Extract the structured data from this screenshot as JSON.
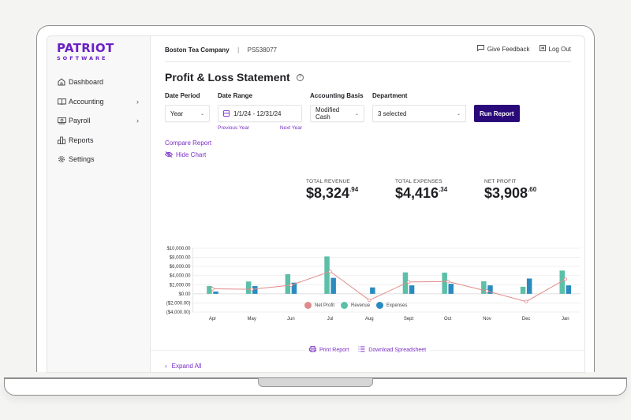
{
  "brand": {
    "name_top": "PATRIOT",
    "name_bottom": "SOFTWARE",
    "color": "#6b1fc6"
  },
  "sidebar": {
    "items": [
      {
        "label": "Dashboard",
        "icon": "home-icon",
        "has_submenu": false
      },
      {
        "label": "Accounting",
        "icon": "book-icon",
        "has_submenu": true
      },
      {
        "label": "Payroll",
        "icon": "money-icon",
        "has_submenu": true
      },
      {
        "label": "Reports",
        "icon": "bar-chart-icon",
        "has_submenu": false
      },
      {
        "label": "Settings",
        "icon": "gear-icon",
        "has_submenu": false
      }
    ],
    "chevron": "›"
  },
  "header": {
    "company": "Boston Tea Company",
    "separator": "|",
    "account_id": "PS538077",
    "give_feedback": "Give Feedback",
    "log_out": "Log Out"
  },
  "page": {
    "title": "Profit & Loss Statement",
    "help": "?"
  },
  "filters": {
    "date_period": {
      "label": "Date Period",
      "value": "Year"
    },
    "date_range": {
      "label": "Date Range",
      "value": "1/1/24 - 12/31/24",
      "previous": "Previous Year",
      "next": "Next Year"
    },
    "accounting_basis": {
      "label": "Accounting Basis",
      "value": "Modified Cash"
    },
    "department": {
      "label": "Department",
      "value": "3 selected"
    },
    "run_report": "Run Report",
    "caret": "⌄"
  },
  "links": {
    "compare_report": "Compare Report",
    "hide_chart": "Hide Chart"
  },
  "totals": {
    "revenue": {
      "label": "TOTAL REVENUE",
      "whole": "$8,324",
      "cents": ".94"
    },
    "expenses": {
      "label": "TOTAL EXPENSES",
      "whole": "$4,416",
      "cents": ".34"
    },
    "net_profit": {
      "label": "NET PROFIT",
      "whole": "$3,908",
      "cents": ".60"
    }
  },
  "colors": {
    "accent": "#7a2fc5",
    "run_button": "#2a0a7a",
    "net_profit": "#e08a8a",
    "revenue": "#5cbfa8",
    "expenses": "#2b8bbf"
  },
  "chart_data": {
    "type": "bar",
    "title": "",
    "xlabel": "",
    "ylabel": "",
    "categories": [
      "Apr",
      "May",
      "Jun",
      "Jul",
      "Aug",
      "Sept",
      "Oct",
      "Nov",
      "Dec",
      "Jan"
    ],
    "series": [
      {
        "name": "Revenue",
        "type": "bar",
        "color": "#5cbfa8",
        "values": [
          1700,
          2700,
          4300,
          8200,
          0,
          4700,
          4650,
          2750,
          1550,
          5100
        ]
      },
      {
        "name": "Expenses",
        "type": "bar",
        "color": "#2b8bbf",
        "values": [
          500,
          1700,
          2450,
          3500,
          1400,
          1850,
          2200,
          1850,
          3350,
          1850
        ]
      },
      {
        "name": "Net Profit",
        "type": "line",
        "color": "#e08a8a",
        "values": [
          1100,
          1000,
          1900,
          4900,
          -1400,
          2600,
          2700,
          600,
          -1700,
          3200
        ]
      }
    ],
    "y_ticks": [
      "$10,000.00",
      "$8,000.00",
      "$6,000.00",
      "$4,000.00",
      "$2,000.00",
      "$0.00",
      "($2,000.00)",
      "($4,000.00)"
    ],
    "ylim": [
      -4000,
      10000
    ],
    "grid": true,
    "legend_position": "bottom",
    "legend": [
      "Net Profit",
      "Revenue",
      "Expenses"
    ]
  },
  "footer_actions": {
    "print_report": "Print Report",
    "download_spreadsheet": "Download Spreadsheet",
    "expand_all": "Expand All"
  }
}
